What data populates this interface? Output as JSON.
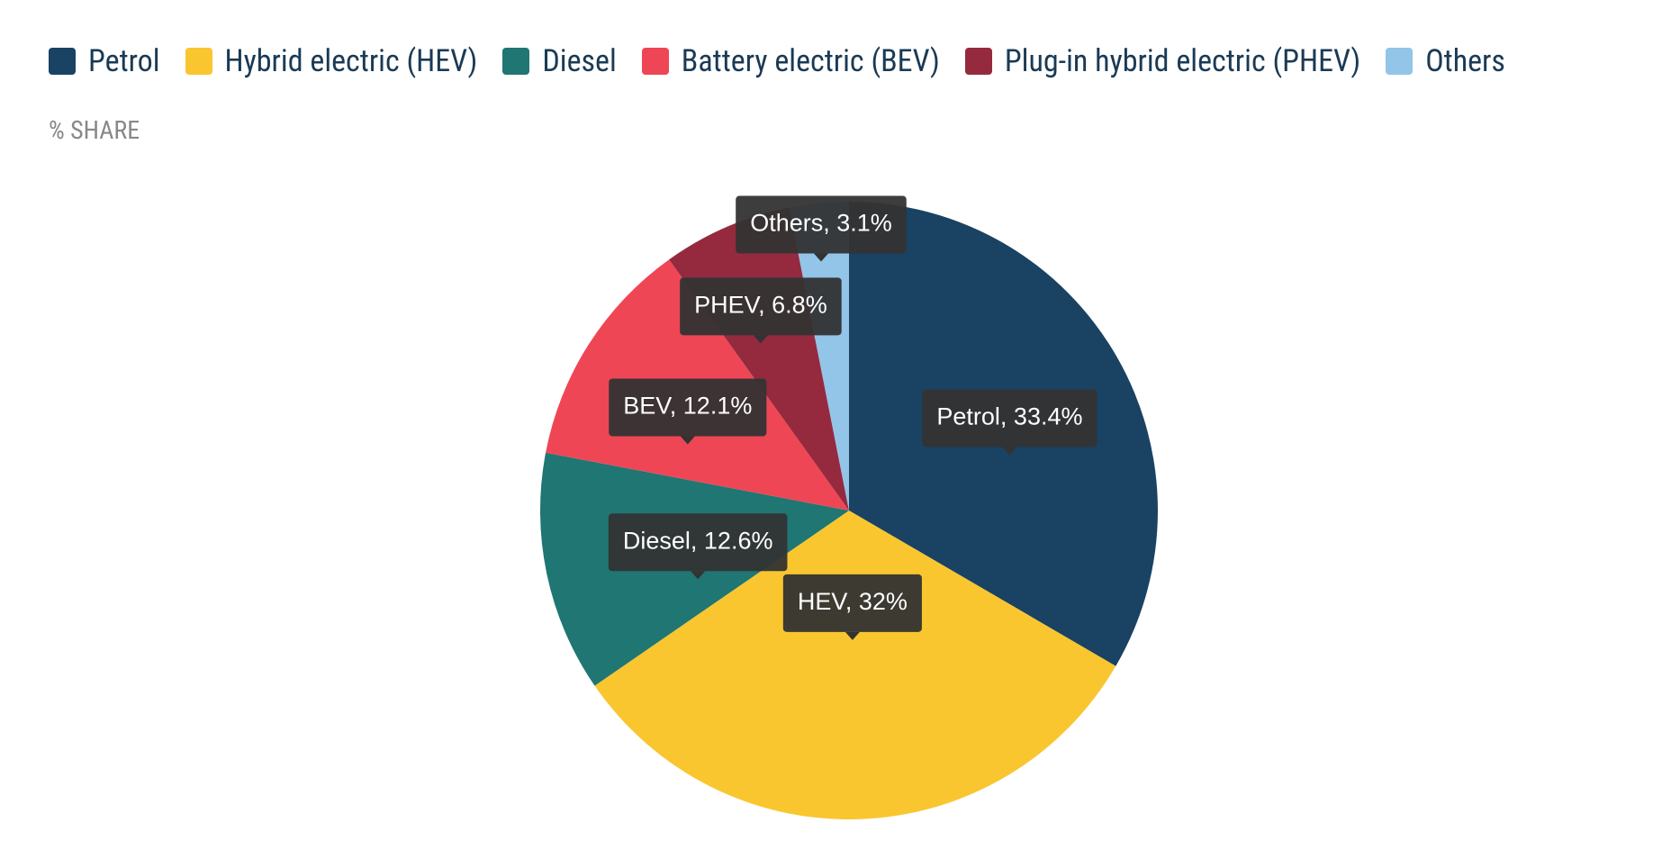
{
  "chart_data": {
    "type": "pie",
    "subtitle": "% SHARE",
    "categories": [
      "Petrol",
      "Hybrid electric (HEV)",
      "Diesel",
      "Battery electric (BEV)",
      "Plug-in hybrid electric (PHEV)",
      "Others"
    ],
    "values": [
      33.4,
      32,
      12.6,
      12.1,
      6.8,
      3.1
    ],
    "value_labels": [
      "Petrol, 33.4%",
      "HEV, 32%",
      "Diesel, 12.6%",
      "BEV, 12.1%",
      "PHEV, 6.8%",
      "Others, 3.1%"
    ],
    "colors": [
      "#1a4262",
      "#f9c62f",
      "#1f7673",
      "#ef4655",
      "#952a3f",
      "#92c5e8"
    ],
    "legend": "top-left"
  }
}
